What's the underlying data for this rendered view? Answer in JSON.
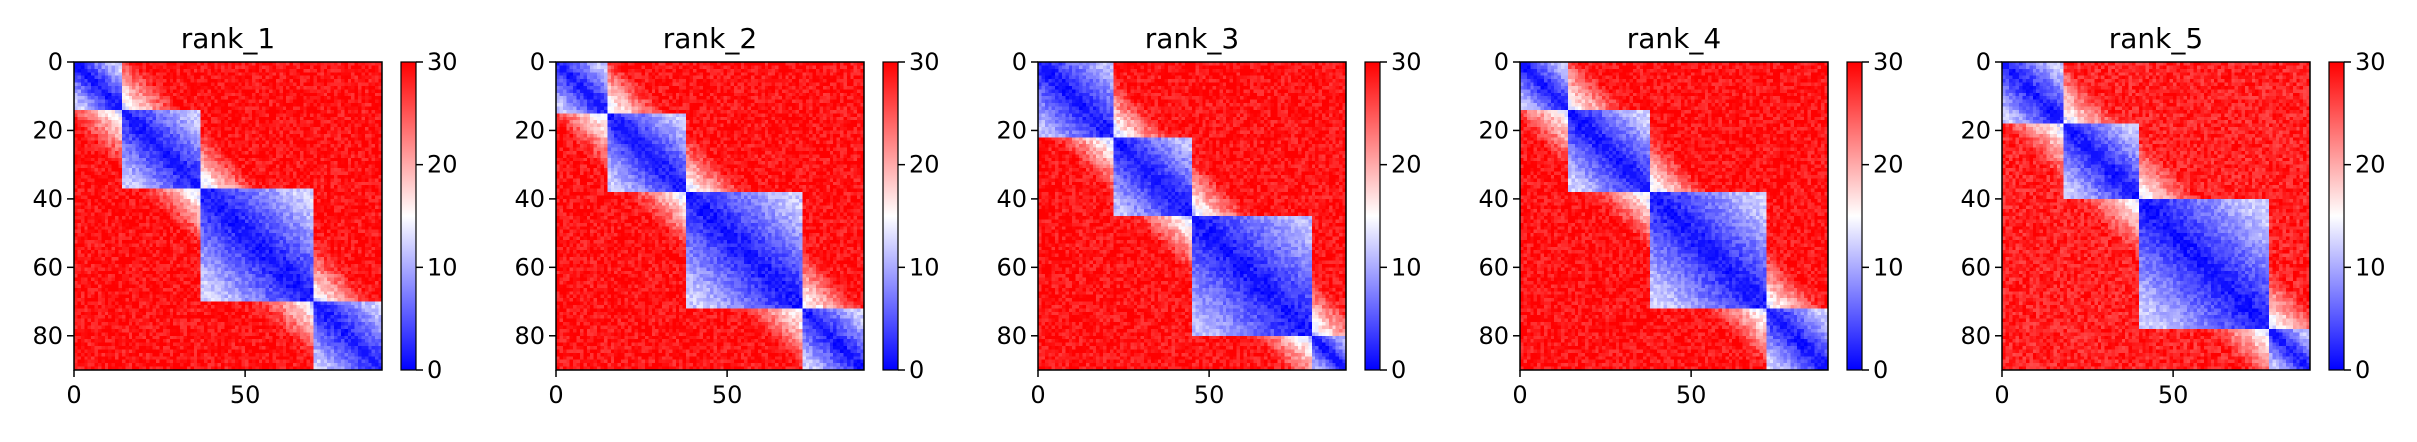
{
  "chart_data": {
    "type": "heatmap",
    "colormap": {
      "name": "bwr",
      "low_color": "#0000ff",
      "mid_color": "#ffffff",
      "high_color": "#ff0000",
      "vmin": 0,
      "vmax": 30,
      "ticks": [
        0,
        10,
        20,
        30
      ]
    },
    "matrix_size": 90,
    "x_ticks": [
      0,
      50
    ],
    "y_ticks": [
      0,
      20,
      40,
      60,
      80
    ],
    "xlim": [
      0,
      90
    ],
    "ylim": [
      90,
      0
    ],
    "panels": [
      {
        "title": "rank_1",
        "domain_boundaries": [
          0,
          14,
          37,
          70,
          90
        ],
        "diagonal_value": 1,
        "intra_domain_value": 12,
        "inter_domain_value": 29
      },
      {
        "title": "rank_2",
        "domain_boundaries": [
          0,
          15,
          38,
          72,
          90
        ],
        "diagonal_value": 1,
        "intra_domain_value": 12,
        "inter_domain_value": 29
      },
      {
        "title": "rank_3",
        "domain_boundaries": [
          0,
          22,
          45,
          80,
          90
        ],
        "diagonal_value": 1,
        "intra_domain_value": 11,
        "inter_domain_value": 29
      },
      {
        "title": "rank_4",
        "domain_boundaries": [
          0,
          14,
          38,
          72,
          90
        ],
        "diagonal_value": 1,
        "intra_domain_value": 12,
        "inter_domain_value": 29
      },
      {
        "title": "rank_5",
        "domain_boundaries": [
          0,
          18,
          40,
          78,
          90
        ],
        "diagonal_value": 1,
        "intra_domain_value": 12,
        "inter_domain_value": 28
      }
    ]
  }
}
